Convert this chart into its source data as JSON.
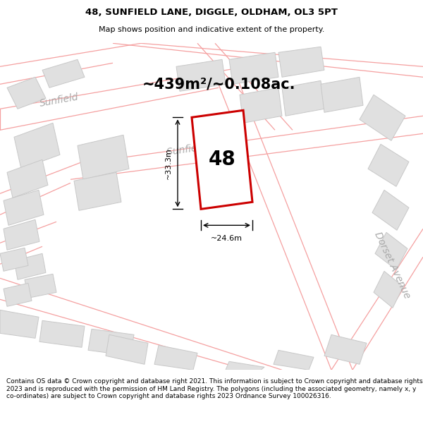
{
  "title": "48, SUNFIELD LANE, DIGGLE, OLDHAM, OL3 5PT",
  "subtitle": "Map shows position and indicative extent of the property.",
  "area_text": "~439m²/~0.108ac.",
  "width_text": "~24.6m",
  "height_text": "~33.3m",
  "number_text": "48",
  "footer_text": "Contains OS data © Crown copyright and database right 2021. This information is subject to Crown copyright and database rights 2023 and is reproduced with the permission of HM Land Registry. The polygons (including the associated geometry, namely x, y co-ordinates) are subject to Crown copyright and database rights 2023 Ordnance Survey 100026316.",
  "map_bg": "#ffffff",
  "road_color": "#f5a0a0",
  "road_lw": 0.8,
  "bldg_face": "#e0e0e0",
  "bldg_edge": "#c8c8c8",
  "prop_color": "#cc0000",
  "prop_face": "#ffffff",
  "road_label_color": "#aaaaaa",
  "dim_color": "#000000",
  "title_fs": 9.5,
  "subtitle_fs": 8,
  "area_fs": 15,
  "num_fs": 20,
  "dim_fs": 8,
  "road_fs": 10,
  "footer_fs": 6.5
}
